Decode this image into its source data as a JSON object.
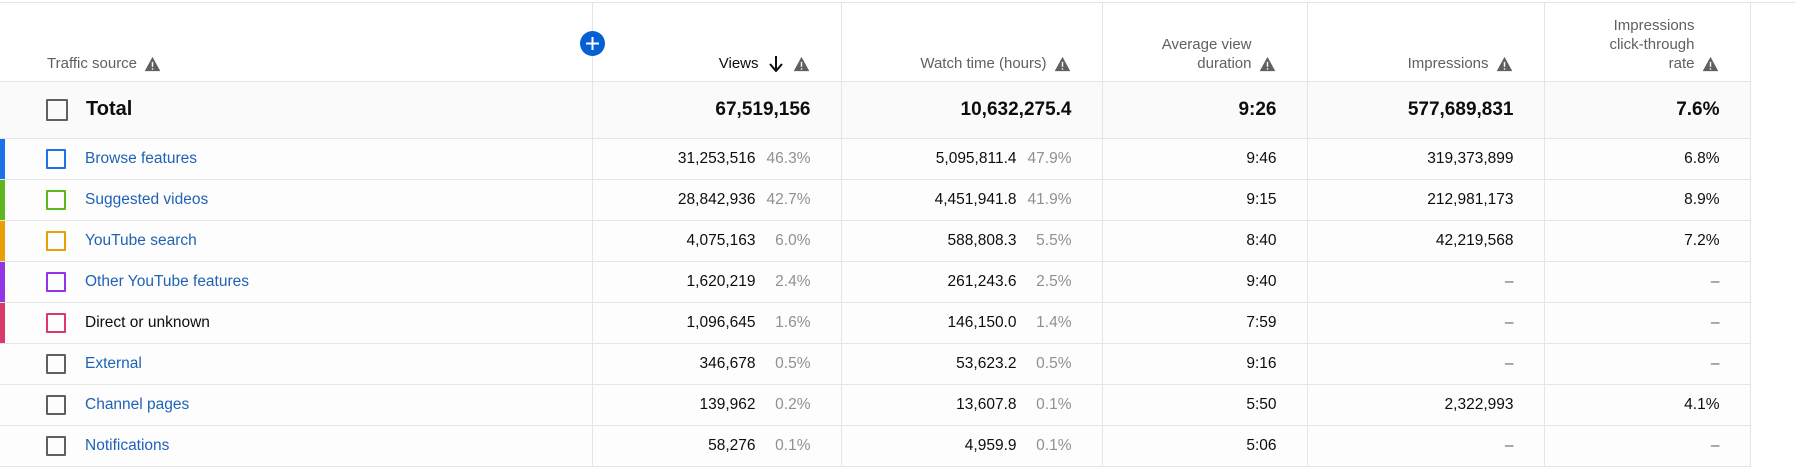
{
  "header": {
    "traffic_source": "Traffic source",
    "views": "Views",
    "watch_time": "Watch time (hours)",
    "avg_view_duration": "Average view duration",
    "impressions": "Impressions",
    "ctr": "Impressions click-through rate"
  },
  "icons": {
    "warning": "warning-triangle-icon",
    "sort": "arrow-down-icon",
    "add": "plus-circle-icon"
  },
  "colors": {
    "accent": "#065fd4",
    "link": "#1f62b5"
  },
  "total": {
    "label": "Total",
    "views": "67,519,156",
    "watch_time": "10,632,275.4",
    "avg_view_duration": "9:26",
    "impressions": "577,689,831",
    "ctr": "7.6%"
  },
  "rows": [
    {
      "source": "Browse features",
      "link": true,
      "color": "#1a73e8",
      "checkbox_color": "#1a73e8",
      "views": "31,253,516",
      "views_pct": "46.3%",
      "watch_time": "5,095,811.4",
      "watch_pct": "47.9%",
      "avg_view_duration": "9:46",
      "impressions": "319,373,899",
      "ctr": "6.8%"
    },
    {
      "source": "Suggested videos",
      "link": true,
      "color": "#5eb71c",
      "checkbox_color": "#5eb71c",
      "views": "28,842,936",
      "views_pct": "42.7%",
      "watch_time": "4,451,941.8",
      "watch_pct": "41.9%",
      "avg_view_duration": "9:15",
      "impressions": "212,981,173",
      "ctr": "8.9%"
    },
    {
      "source": "YouTube search",
      "link": true,
      "color": "#e8a005",
      "checkbox_color": "#e8a005",
      "views": "4,075,163",
      "views_pct": "6.0%",
      "watch_time": "588,808.3",
      "watch_pct": "5.5%",
      "avg_view_duration": "8:40",
      "impressions": "42,219,568",
      "ctr": "7.2%"
    },
    {
      "source": "Other YouTube features",
      "link": true,
      "color": "#9334e6",
      "checkbox_color": "#9334e6",
      "views": "1,620,219",
      "views_pct": "2.4%",
      "watch_time": "261,243.6",
      "watch_pct": "2.5%",
      "avg_view_duration": "9:40",
      "impressions": "–",
      "ctr": "–"
    },
    {
      "source": "Direct or unknown",
      "link": false,
      "color": "#d93a6a",
      "checkbox_color": "#d93a6a",
      "views": "1,096,645",
      "views_pct": "1.6%",
      "watch_time": "146,150.0",
      "watch_pct": "1.4%",
      "avg_view_duration": "7:59",
      "impressions": "–",
      "ctr": "–"
    },
    {
      "source": "External",
      "link": true,
      "color": "",
      "checkbox_color": "#606060",
      "views": "346,678",
      "views_pct": "0.5%",
      "watch_time": "53,623.2",
      "watch_pct": "0.5%",
      "avg_view_duration": "9:16",
      "impressions": "–",
      "ctr": "–"
    },
    {
      "source": "Channel pages",
      "link": true,
      "color": "",
      "checkbox_color": "#606060",
      "views": "139,962",
      "views_pct": "0.2%",
      "watch_time": "13,607.8",
      "watch_pct": "0.1%",
      "avg_view_duration": "5:50",
      "impressions": "2,322,993",
      "ctr": "4.1%"
    },
    {
      "source": "Notifications",
      "link": true,
      "color": "",
      "checkbox_color": "#606060",
      "views": "58,276",
      "views_pct": "0.1%",
      "watch_time": "4,959.9",
      "watch_pct": "0.1%",
      "avg_view_duration": "5:06",
      "impressions": "–",
      "ctr": "–"
    }
  ]
}
